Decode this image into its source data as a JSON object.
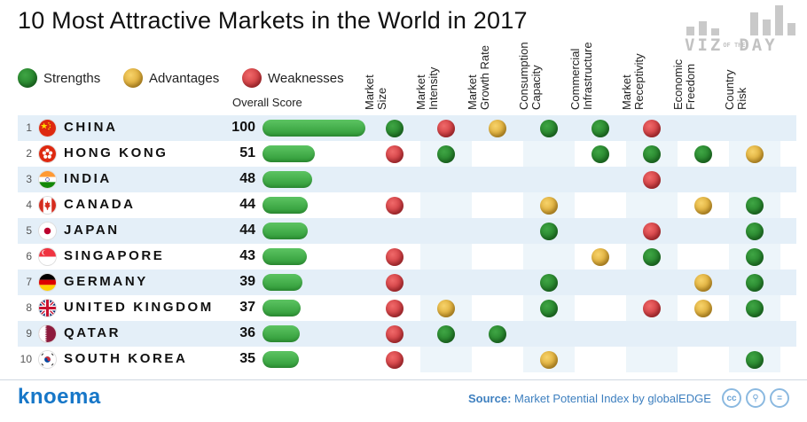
{
  "title": "10 Most Attractive Markets in the World in 2017",
  "logo": {
    "text": "VIZ",
    "small": "OF THE",
    "text2": "DAY"
  },
  "legend": [
    {
      "label": "Strengths",
      "color": "green"
    },
    {
      "label": "Advantages",
      "color": "yellow"
    },
    {
      "label": "Weaknesses",
      "color": "red"
    }
  ],
  "overall_score_label": "Overall Score",
  "footer": {
    "brand": "knoema",
    "source_label": "Source:",
    "source_text": "Market Potential Index by globalEDGE",
    "license_icons": [
      "cc",
      "by",
      "nd"
    ]
  },
  "chart_data": {
    "type": "table",
    "title": "10 Most Attractive Markets in the World in 2017",
    "columns": [
      "Market\nSize",
      "Market\nIntensity",
      "Market\nGrowth Rate",
      "Consumption\nCapacity",
      "Commercial\nInfrastructure",
      "Market\nReceptivity",
      "Economic\nFreedom",
      "Country\nRisk"
    ],
    "score_max": 100,
    "rows": [
      {
        "rank": "1",
        "country": "CHINA",
        "flag": "cn",
        "score": 100,
        "marks": [
          "green",
          "red",
          "yellow",
          "green",
          "green",
          "red",
          "",
          ""
        ]
      },
      {
        "rank": "2",
        "country": "HONG KONG",
        "flag": "hk",
        "score": 51,
        "marks": [
          "red",
          "green",
          "",
          "",
          "green",
          "green",
          "green",
          "yellow"
        ]
      },
      {
        "rank": "3",
        "country": "INDIA",
        "flag": "in",
        "score": 48,
        "marks": [
          "",
          "",
          "",
          "",
          "",
          "red",
          "",
          ""
        ]
      },
      {
        "rank": "4",
        "country": "CANADA",
        "flag": "ca",
        "score": 44,
        "marks": [
          "red",
          "",
          "",
          "yellow",
          "",
          "",
          "yellow",
          "green"
        ]
      },
      {
        "rank": "5",
        "country": "JAPAN",
        "flag": "jp",
        "score": 44,
        "marks": [
          "",
          "",
          "",
          "green",
          "",
          "red",
          "",
          "green"
        ]
      },
      {
        "rank": "6",
        "country": "SINGAPORE",
        "flag": "sg",
        "score": 43,
        "marks": [
          "red",
          "",
          "",
          "",
          "yellow",
          "green",
          "",
          "green"
        ]
      },
      {
        "rank": "7",
        "country": "GERMANY",
        "flag": "de",
        "score": 39,
        "marks": [
          "red",
          "",
          "",
          "green",
          "",
          "",
          "yellow",
          "green"
        ]
      },
      {
        "rank": "8",
        "country": "UNITED KINGDOM",
        "flag": "gb",
        "score": 37,
        "marks": [
          "red",
          "yellow",
          "",
          "green",
          "",
          "red",
          "yellow",
          "green"
        ]
      },
      {
        "rank": "9",
        "country": "QATAR",
        "flag": "qa",
        "score": 36,
        "marks": [
          "red",
          "green",
          "green",
          "",
          "",
          "",
          "",
          ""
        ]
      },
      {
        "rank": "10",
        "country": "SOUTH KOREA",
        "flag": "kr",
        "score": 35,
        "marks": [
          "red",
          "",
          "",
          "yellow",
          "",
          "",
          "",
          "green"
        ]
      }
    ]
  }
}
